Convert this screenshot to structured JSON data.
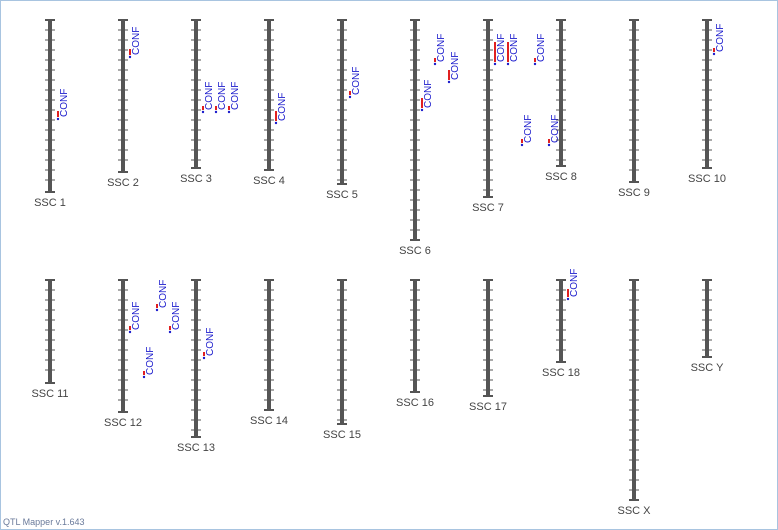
{
  "chromosomes": [
    {
      "label": "SSC 1",
      "qtls": [
        "CONF"
      ]
    },
    {
      "label": "SSC 2",
      "qtls": [
        "CONF"
      ]
    },
    {
      "label": "SSC 3",
      "qtls": [
        "CONF",
        "CONF",
        "CONF"
      ]
    },
    {
      "label": "SSC 4",
      "qtls": [
        "CONF"
      ]
    },
    {
      "label": "SSC 5",
      "qtls": [
        "CONF"
      ]
    },
    {
      "label": "SSC 6",
      "qtls": [
        "CONF",
        "CONF",
        "CONF"
      ]
    },
    {
      "label": "SSC 7",
      "qtls": [
        "CONF",
        "CONF",
        "CONF",
        "CONF",
        "CONF"
      ]
    },
    {
      "label": "SSC 8",
      "qtls": []
    },
    {
      "label": "SSC 9",
      "qtls": []
    },
    {
      "label": "SSC 10",
      "qtls": [
        "CONF"
      ]
    },
    {
      "label": "SSC 11",
      "qtls": []
    },
    {
      "label": "SSC 12",
      "qtls": [
        "CONF",
        "CONF",
        "CONF",
        "CONF"
      ]
    },
    {
      "label": "SSC 13",
      "qtls": [
        "CONF"
      ]
    },
    {
      "label": "SSC 14",
      "qtls": []
    },
    {
      "label": "SSC 15",
      "qtls": []
    },
    {
      "label": "SSC 16",
      "qtls": []
    },
    {
      "label": "SSC 17",
      "qtls": []
    },
    {
      "label": "SSC 18",
      "qtls": [
        "CONF"
      ]
    },
    {
      "label": "SSC X",
      "qtls": []
    },
    {
      "label": "SSC Y",
      "qtls": []
    }
  ],
  "footer": "QTL Mapper v.1.643"
}
